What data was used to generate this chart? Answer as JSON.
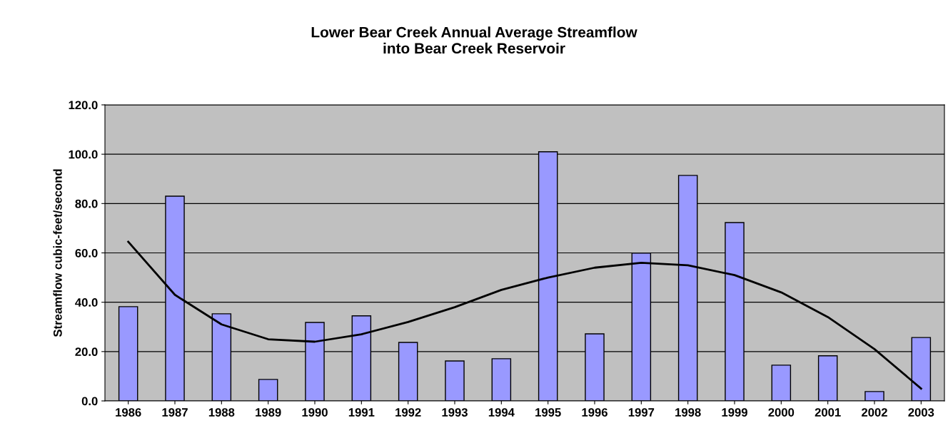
{
  "chart_data": {
    "type": "bar",
    "title": "Lower Bear Creek Annual Average Streamflow\ninto Bear Creek Reservoir",
    "ylabel": "Streamflow cubic-feet/second",
    "categories": [
      "1986",
      "1987",
      "1988",
      "1989",
      "1990",
      "1991",
      "1992",
      "1993",
      "1994",
      "1995",
      "1996",
      "1997",
      "1998",
      "1999",
      "2000",
      "2001",
      "2002",
      "2003"
    ],
    "series": [
      {
        "color": "#9999ff",
        "values": [
          38.2,
          83.0,
          35.3,
          8.7,
          31.8,
          34.5,
          23.7,
          16.2,
          17.1,
          101.0,
          27.2,
          59.9,
          91.4,
          72.3,
          14.5,
          18.3,
          3.8,
          25.7
        ]
      },
      {
        "type": "line",
        "color": "#000000",
        "values": [
          64.5,
          43.0,
          31.0,
          25.0,
          24.0,
          27.0,
          32.0,
          38.0,
          45.0,
          50.0,
          54.0,
          56.0,
          55.0,
          51.0,
          44.0,
          34.0,
          21.0,
          5.0
        ]
      }
    ],
    "ylim": [
      0,
      120
    ],
    "yticks": [
      {
        "value": 0,
        "label": "0.0"
      },
      {
        "value": 20,
        "label": "20.0"
      },
      {
        "value": 40,
        "label": "40.0"
      },
      {
        "value": 60,
        "label": "60.0"
      },
      {
        "value": 80,
        "label": "80.0"
      },
      {
        "value": 100,
        "label": "100.0"
      },
      {
        "value": 120,
        "label": "120.0"
      }
    ],
    "grid": "y"
  }
}
